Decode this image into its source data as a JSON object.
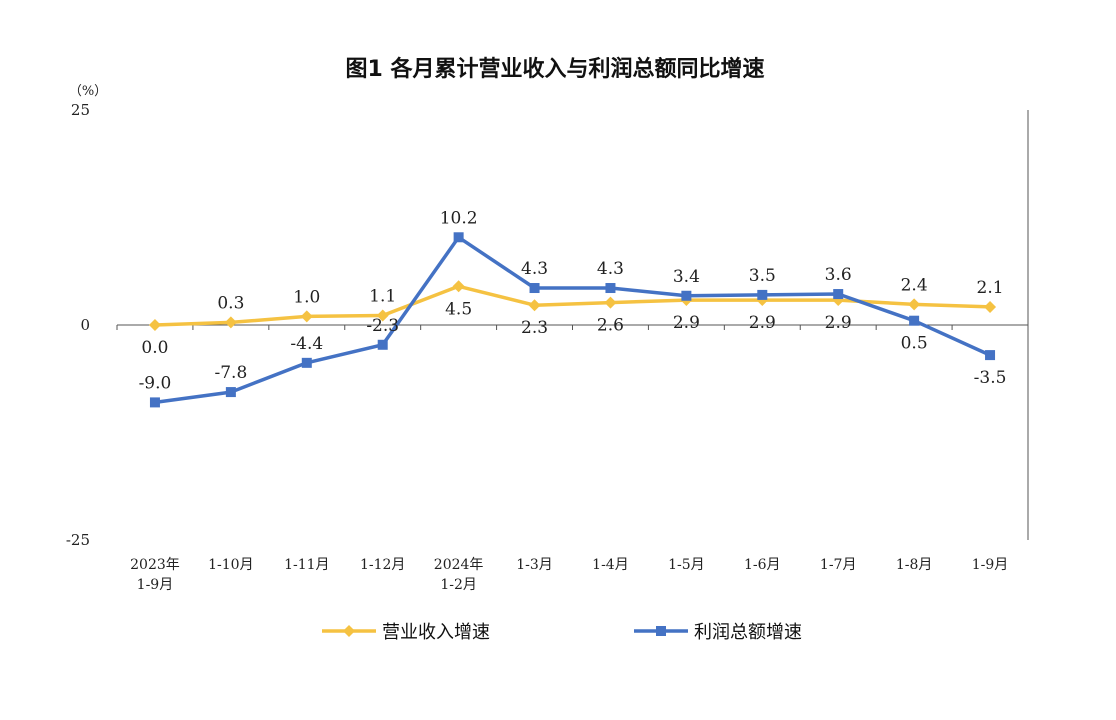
{
  "chart_data": {
    "type": "line",
    "title": "图1  各月累计营业收入与利润总额同比增速",
    "unit_label": "（%）",
    "ylim": [
      -25,
      25
    ],
    "y_ticks": [
      "25",
      "0",
      "-25"
    ],
    "grid": false,
    "legend_position": "bottom",
    "categories": [
      [
        "2023年",
        "1-9月"
      ],
      [
        "1-10月"
      ],
      [
        "1-11月"
      ],
      [
        "1-12月"
      ],
      [
        "2024年",
        "1-2月"
      ],
      [
        "1-3月"
      ],
      [
        "1-4月"
      ],
      [
        "1-5月"
      ],
      [
        "1-6月"
      ],
      [
        "1-7月"
      ],
      [
        "1-8月"
      ],
      [
        "1-9月"
      ]
    ],
    "series": [
      {
        "name": "营业收入增速",
        "color": "#f5c242",
        "marker": "diamond",
        "values": [
          0.0,
          0.3,
          1.0,
          1.1,
          4.5,
          2.3,
          2.6,
          2.9,
          2.9,
          2.9,
          2.4,
          2.1
        ],
        "labels": [
          "0.0",
          "0.3",
          "1.0",
          "1.1",
          "4.5",
          "2.3",
          "2.6",
          "2.9",
          "2.9",
          "2.9",
          "2.4",
          "2.1"
        ],
        "label_side": [
          "below",
          "above",
          "above",
          "above",
          "below",
          "below",
          "below",
          "below",
          "below",
          "below",
          "above",
          "above"
        ]
      },
      {
        "name": "利润总额增速",
        "color": "#4472c4",
        "marker": "square",
        "values": [
          -9.0,
          -7.8,
          -4.4,
          -2.3,
          10.2,
          4.3,
          4.3,
          3.4,
          3.5,
          3.6,
          0.5,
          -3.5
        ],
        "labels": [
          "-9.0",
          "-7.8",
          "-4.4",
          "-2.3",
          "10.2",
          "4.3",
          "4.3",
          "3.4",
          "3.5",
          "3.6",
          "0.5",
          "-3.5"
        ],
        "label_side": [
          "above",
          "above",
          "above",
          "above",
          "above",
          "above",
          "above",
          "above",
          "above",
          "above",
          "below",
          "below"
        ]
      }
    ]
  }
}
